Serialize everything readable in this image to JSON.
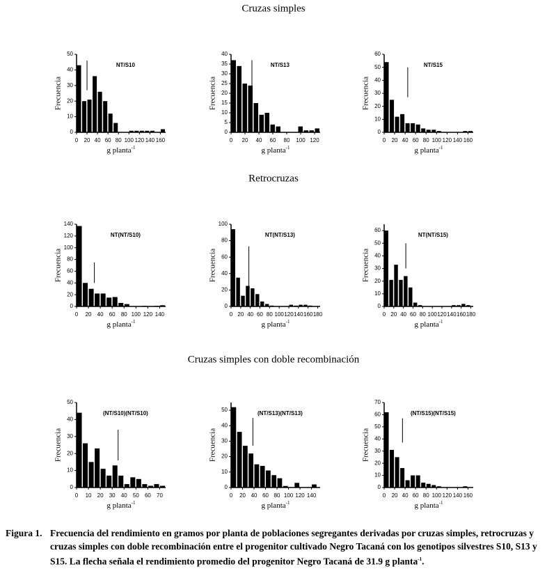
{
  "sections": [
    "Cruzas simples",
    "Retrocruzas",
    "Cruzas simples con doble recombinación"
  ],
  "caption": {
    "label": "Figura 1.",
    "text": "Frecuencia del rendimiento en gramos por planta de poblaciones segregantes derivadas por cruzas simples, retrocruzas y cruzas simples con doble recombinación entre el progenitor cultivado Negro Tacaná con los genotipos silvestres S10, S13 y S15. La flecha señala el rendimiento promedio del progenitor Negro Tacaná de 31.9 g planta",
    "text_sup": "-1",
    "text_end": "."
  },
  "chart_data": [
    {
      "type": "histogram",
      "title": "NT/S10",
      "ylabel": "Frecuencia",
      "xlabel": "g planta",
      "xlabel_sup": "-1",
      "bins": [
        0,
        10,
        20,
        30,
        40,
        50,
        60,
        70,
        80,
        90,
        100,
        110,
        120,
        130,
        140,
        150,
        160,
        170
      ],
      "counts": [
        43,
        20,
        21,
        36,
        26,
        20,
        12,
        6,
        0,
        0,
        1,
        1,
        1,
        1,
        1,
        0,
        2
      ],
      "color": "#000000",
      "xlim": [
        0,
        170
      ],
      "xticks": [
        0,
        20,
        40,
        60,
        80,
        100,
        120,
        140,
        160
      ],
      "ylim": [
        0,
        50
      ],
      "yticks": [
        0,
        10,
        20,
        30,
        40,
        50
      ],
      "marker": {
        "x": 20,
        "y_top": 46,
        "y_bottom": 27
      }
    },
    {
      "type": "histogram",
      "title": "NT/S13",
      "ylabel": "Frecuencia",
      "xlabel": "g planta",
      "xlabel_sup": "-1",
      "bins": [
        0,
        8,
        16,
        24,
        32,
        40,
        48,
        56,
        64,
        72,
        80,
        88,
        96,
        104,
        112,
        120,
        128
      ],
      "counts": [
        37,
        34,
        25,
        24,
        15,
        9,
        10,
        4,
        3,
        0,
        0,
        0,
        3,
        1,
        1,
        2
      ],
      "color": "#000000",
      "xlim": [
        0,
        128
      ],
      "xticks": [
        0,
        20,
        40,
        60,
        80,
        100,
        120
      ],
      "ylim": [
        0,
        40
      ],
      "yticks": [
        0,
        5,
        10,
        15,
        20,
        25,
        30,
        35,
        40
      ],
      "marker": {
        "x": 30,
        "y_top": 37,
        "y_bottom": 24
      }
    },
    {
      "type": "histogram",
      "title": "NT/S15",
      "ylabel": "Frecuencia",
      "xlabel": "g planta",
      "xlabel_sup": "-1",
      "bins": [
        0,
        10,
        20,
        30,
        40,
        50,
        60,
        70,
        80,
        90,
        100,
        110,
        120,
        130,
        140,
        150,
        160,
        170
      ],
      "counts": [
        54,
        25,
        12,
        14,
        7,
        7,
        6,
        3,
        2,
        2,
        1,
        0,
        0,
        0,
        0,
        1,
        1
      ],
      "color": "#000000",
      "xlim": [
        0,
        170
      ],
      "xticks": [
        0,
        20,
        40,
        60,
        80,
        100,
        120,
        140,
        160
      ],
      "ylim": [
        0,
        60
      ],
      "yticks": [
        0,
        10,
        20,
        30,
        40,
        50,
        60
      ],
      "marker": {
        "x": 45,
        "y_top": 50,
        "y_bottom": 27
      }
    },
    {
      "type": "histogram",
      "title": "NT(NT/S10)",
      "ylabel": "Frecuencia",
      "xlabel": "g planta",
      "xlabel_sup": "-1",
      "bins": [
        0,
        10,
        20,
        30,
        40,
        50,
        60,
        70,
        80,
        90,
        100,
        110,
        120,
        130,
        140,
        150
      ],
      "counts": [
        137,
        40,
        30,
        22,
        22,
        15,
        16,
        6,
        4,
        0,
        0,
        1,
        0,
        1,
        2
      ],
      "color": "#000000",
      "xlim": [
        0,
        150
      ],
      "xticks": [
        0,
        20,
        40,
        60,
        80,
        100,
        120,
        140
      ],
      "ylim": [
        0,
        140
      ],
      "yticks": [
        0,
        20,
        40,
        60,
        80,
        100,
        120,
        140
      ],
      "marker": {
        "x": 30,
        "y_top": 75,
        "y_bottom": 40
      }
    },
    {
      "type": "histogram",
      "title": "NT(NT/S13)",
      "ylabel": "Frecuencia",
      "xlabel": "g planta",
      "xlabel_sup": "-1",
      "bins": [
        0,
        10,
        20,
        30,
        40,
        50,
        60,
        70,
        80,
        90,
        100,
        110,
        120,
        130,
        140,
        150,
        160,
        170,
        180
      ],
      "counts": [
        94,
        35,
        13,
        25,
        22,
        15,
        6,
        3,
        1,
        0,
        0,
        0,
        2,
        1,
        2,
        2,
        1,
        0
      ],
      "color": "#000000",
      "xlim": [
        0,
        185
      ],
      "xticks": [
        0,
        20,
        40,
        60,
        80,
        100,
        120,
        140,
        160,
        180
      ],
      "ylim": [
        0,
        100
      ],
      "yticks": [
        0,
        20,
        40,
        60,
        80,
        100
      ],
      "marker": {
        "x": 37,
        "y_top": 73,
        "y_bottom": 23
      }
    },
    {
      "type": "histogram",
      "title": "NT(NT/S15)",
      "ylabel": "Frecuencia",
      "xlabel": "g planta",
      "xlabel_sup": "-1",
      "bins": [
        0,
        10,
        20,
        30,
        40,
        50,
        60,
        70,
        80,
        90,
        100,
        110,
        120,
        130,
        140,
        150,
        160,
        170,
        180
      ],
      "counts": [
        60,
        21,
        33,
        21,
        24,
        15,
        3,
        1,
        0,
        0,
        0,
        0,
        0,
        0,
        1,
        1,
        2,
        1
      ],
      "color": "#000000",
      "xlim": [
        0,
        185
      ],
      "xticks": [
        0,
        20,
        40,
        60,
        80,
        100,
        120,
        140,
        160,
        180
      ],
      "ylim": [
        0,
        65
      ],
      "yticks": [
        0,
        10,
        20,
        30,
        40,
        50,
        60
      ],
      "marker": {
        "x": 45,
        "y_top": 50,
        "y_bottom": 30
      }
    },
    {
      "type": "histogram",
      "title": "(NT/S10)(NT/S10)",
      "ylabel": "Frecuencia",
      "xlabel": "g planta",
      "xlabel_sup": "-1",
      "bins": [
        0,
        5,
        10,
        15,
        20,
        25,
        30,
        35,
        40,
        45,
        50,
        55,
        60,
        65,
        70,
        75
      ],
      "counts": [
        44,
        26,
        15,
        23,
        11,
        7,
        13,
        7,
        2,
        6,
        5,
        2,
        1,
        2,
        1
      ],
      "color": "#000000",
      "xlim": [
        0,
        75
      ],
      "xticks": [
        0,
        10,
        20,
        30,
        40,
        50,
        60,
        70
      ],
      "ylim": [
        0,
        50
      ],
      "yticks": [
        0,
        10,
        20,
        30,
        40,
        50
      ],
      "marker": {
        "x": 35,
        "y_top": 34,
        "y_bottom": 16
      }
    },
    {
      "type": "histogram",
      "title": "(NT/S13)(NT/S13)",
      "ylabel": "Frecuencia",
      "xlabel": "g planta",
      "xlabel_sup": "-1",
      "bins": [
        0,
        10,
        20,
        30,
        40,
        50,
        60,
        70,
        80,
        90,
        100,
        110,
        120,
        130,
        140,
        150
      ],
      "counts": [
        52,
        36,
        27,
        22,
        15,
        14,
        11,
        8,
        6,
        1,
        0,
        3,
        0,
        0,
        2
      ],
      "color": "#000000",
      "xlim": [
        0,
        155
      ],
      "xticks": [
        0,
        20,
        40,
        60,
        80,
        100,
        120,
        140
      ],
      "ylim": [
        0,
        55
      ],
      "yticks": [
        0,
        10,
        20,
        30,
        40,
        50
      ],
      "marker": {
        "x": 38,
        "y_top": 45,
        "y_bottom": 27
      }
    },
    {
      "type": "histogram",
      "title": "(NT/S15)(NT/S15)",
      "ylabel": "Frecuencia",
      "xlabel": "g planta",
      "xlabel_sup": "-1",
      "bins": [
        0,
        10,
        20,
        30,
        40,
        50,
        60,
        70,
        80,
        90,
        100,
        110,
        120,
        130,
        140,
        150,
        160,
        170
      ],
      "counts": [
        62,
        31,
        25,
        16,
        6,
        10,
        10,
        4,
        3,
        2,
        1,
        0,
        0,
        0,
        0,
        1,
        0
      ],
      "color": "#000000",
      "xlim": [
        0,
        170
      ],
      "xticks": [
        0,
        20,
        40,
        60,
        80,
        100,
        120,
        140,
        160
      ],
      "ylim": [
        0,
        70
      ],
      "yticks": [
        0,
        10,
        20,
        30,
        40,
        50,
        60,
        70
      ],
      "marker": {
        "x": 35,
        "y_top": 57,
        "y_bottom": 37
      }
    }
  ]
}
